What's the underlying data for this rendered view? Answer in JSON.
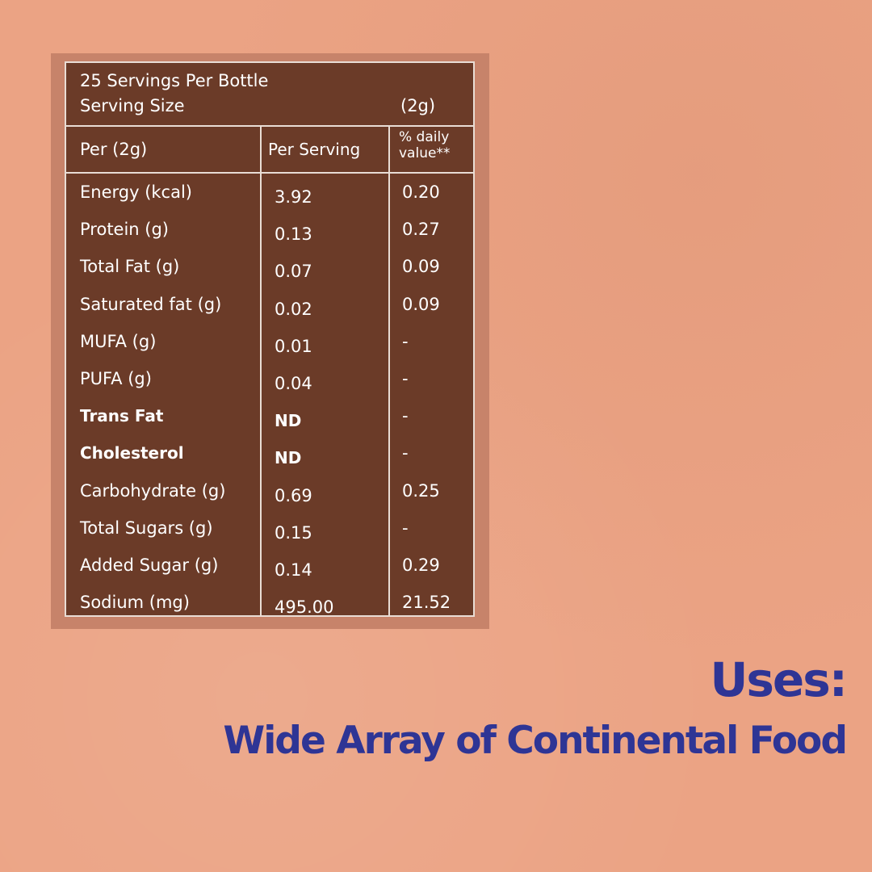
{
  "header": {
    "servings": "25 Servings Per Bottle",
    "serving_size_label": "Serving Size",
    "serving_size_value": "(2g)"
  },
  "columns": {
    "c1": "Per (2g)",
    "c2": "Per Serving",
    "c3a": "% daily",
    "c3b": "value**"
  },
  "rows": [
    {
      "name": "Energy (kcal)",
      "per": "3.92",
      "dv": "0.20",
      "bold": false
    },
    {
      "name": "Protein (g)",
      "per": "0.13",
      "dv": "0.27",
      "bold": false
    },
    {
      "name": "Total Fat (g)",
      "per": "0.07",
      "dv": "0.09",
      "bold": false
    },
    {
      "name": "Saturated fat (g)",
      "per": "0.02",
      "dv": "0.09",
      "bold": false
    },
    {
      "name": "MUFA (g)",
      "per": "0.01",
      "dv": "-",
      "bold": false
    },
    {
      "name": "PUFA (g)",
      "per": "0.04",
      "dv": "-",
      "bold": false
    },
    {
      "name": "Trans Fat",
      "per": "ND",
      "dv": "-",
      "bold": true
    },
    {
      "name": "Cholesterol",
      "per": "ND",
      "dv": "-",
      "bold": true
    },
    {
      "name": "Carbohydrate (g)",
      "per": "0.69",
      "dv": "0.25",
      "bold": false
    },
    {
      "name": "Total Sugars (g)",
      "per": "0.15",
      "dv": "-",
      "bold": false
    },
    {
      "name": "Added Sugar (g)",
      "per": "0.14",
      "dv": "0.29",
      "bold": false
    },
    {
      "name": "Sodium (mg)",
      "per": "495.00",
      "dv": "21.52",
      "bold": false
    }
  ],
  "uses": {
    "title": "Uses:",
    "text": "Wide Array of Continental Food"
  },
  "colors": {
    "background": "#eba384",
    "table": "#6b3b28",
    "accent_text": "#2e3595"
  }
}
